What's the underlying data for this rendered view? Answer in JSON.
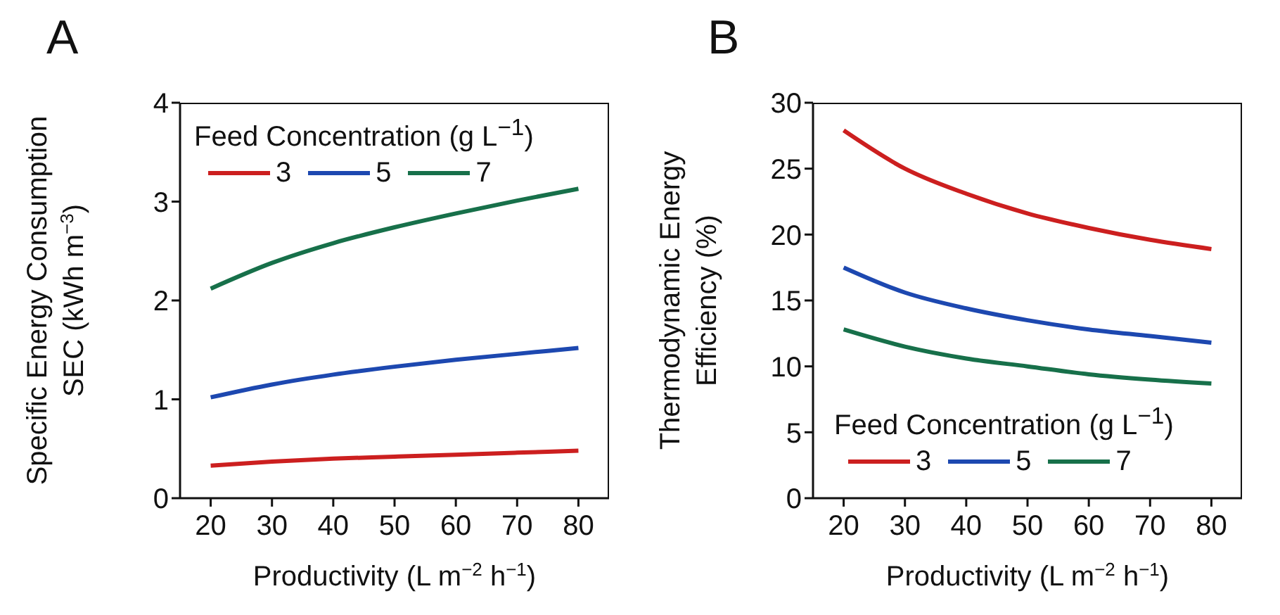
{
  "chart_data": [
    {
      "type": "line",
      "title": "A",
      "xlabel": "Productivity (L m$^{−2}$ h$^{−1}$)",
      "ylabel": "Specific Energy Consumption\nSEC  (kWh m$^{−3}$)",
      "legend_title": "Feed Concentration (g L$^{−1}$)",
      "legend": "top left",
      "grid": false,
      "x": [
        20,
        30,
        40,
        50,
        60,
        70,
        80
      ],
      "xlim": [
        15,
        85
      ],
      "xticks": [
        20,
        30,
        40,
        50,
        60,
        70,
        80
      ],
      "ylim": [
        0,
        4
      ],
      "yticks": [
        0,
        1,
        2,
        3,
        4
      ],
      "series": [
        {
          "name": "3",
          "color": "#cc1f1f",
          "values": [
            0.33,
            0.37,
            0.4,
            0.42,
            0.44,
            0.46,
            0.48
          ]
        },
        {
          "name": "5",
          "color": "#1d48b0",
          "values": [
            1.02,
            1.15,
            1.25,
            1.33,
            1.4,
            1.46,
            1.52
          ]
        },
        {
          "name": "7",
          "color": "#17704a",
          "values": [
            2.12,
            2.38,
            2.58,
            2.74,
            2.88,
            3.01,
            3.13
          ]
        }
      ]
    },
    {
      "type": "line",
      "title": "B",
      "xlabel": "Productivity (L m$^{−2}$ h$^{−1}$)",
      "ylabel": "Thermodynamic Energy\nEfficiency (%)",
      "legend_title": "Feed Concentration (g L$^{−1}$)",
      "legend": "bottom",
      "grid": false,
      "x": [
        20,
        30,
        40,
        50,
        60,
        70,
        80
      ],
      "xlim": [
        15,
        85
      ],
      "xticks": [
        20,
        30,
        40,
        50,
        60,
        70,
        80
      ],
      "ylim": [
        0,
        30
      ],
      "yticks": [
        0,
        5,
        10,
        15,
        20,
        25,
        30
      ],
      "series": [
        {
          "name": "3",
          "color": "#cc1f1f",
          "values": [
            27.9,
            25.0,
            23.1,
            21.6,
            20.5,
            19.6,
            18.9
          ]
        },
        {
          "name": "5",
          "color": "#1d48b0",
          "values": [
            17.5,
            15.6,
            14.4,
            13.5,
            12.8,
            12.3,
            11.8
          ]
        },
        {
          "name": "7",
          "color": "#17704a",
          "values": [
            12.8,
            11.5,
            10.6,
            10.0,
            9.4,
            9.0,
            8.7
          ]
        }
      ]
    }
  ]
}
